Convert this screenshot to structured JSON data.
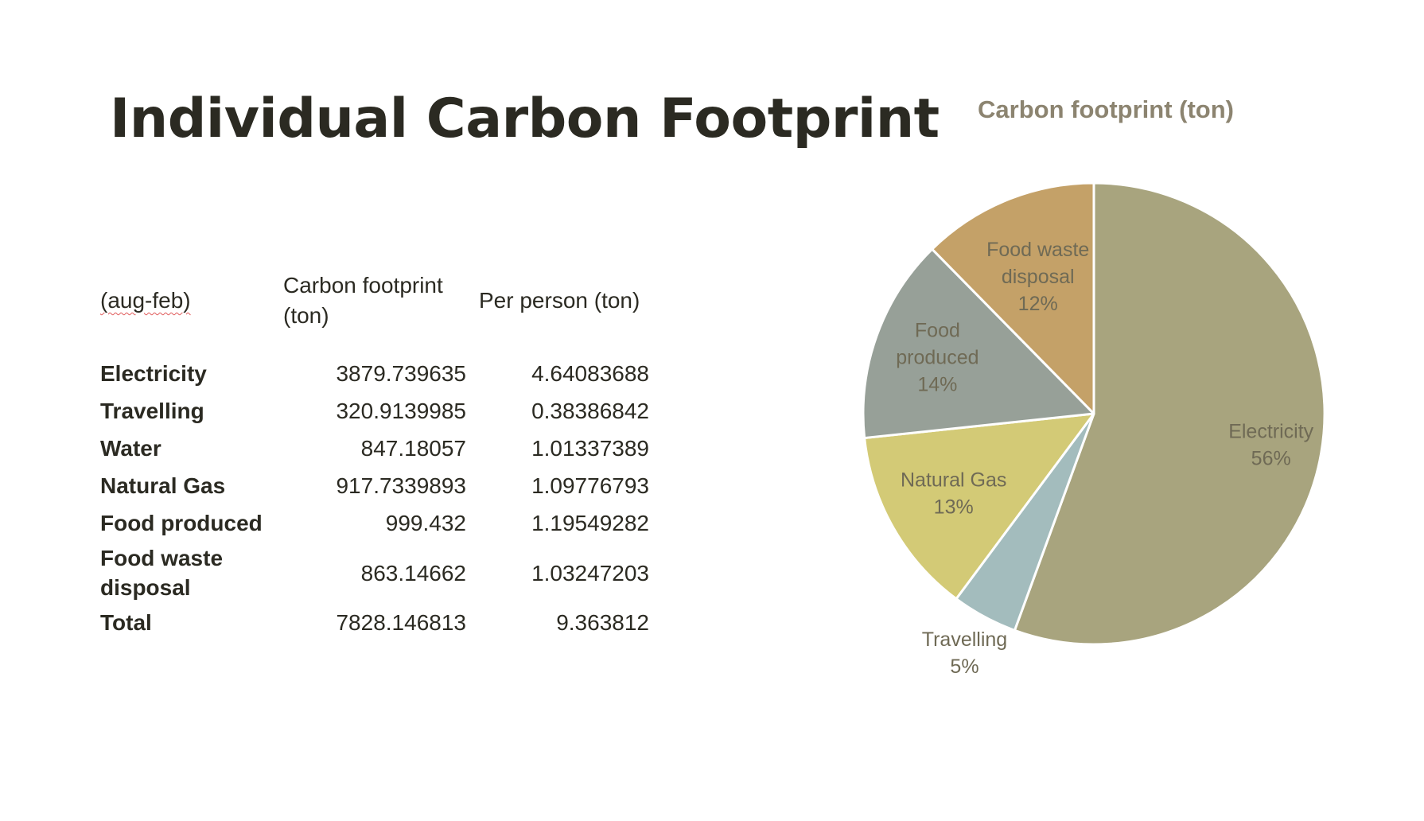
{
  "slide": {
    "title": "Individual Carbon Footprint"
  },
  "table": {
    "headers": [
      "(aug-feb)",
      "Carbon footprint (ton)",
      "Per person (ton)"
    ],
    "rows": [
      {
        "category": "Electricity",
        "footprint": "3879.739635",
        "per_person": "4.64083688"
      },
      {
        "category": "Travelling",
        "footprint": "320.9139985",
        "per_person": "0.38386842"
      },
      {
        "category": "Water",
        "footprint": "847.18057",
        "per_person": "1.01337389"
      },
      {
        "category": "Natural Gas",
        "footprint": "917.7339893",
        "per_person": "1.09776793"
      },
      {
        "category": "Food produced",
        "footprint": "999.432",
        "per_person": "1.19549282"
      },
      {
        "category": "Food waste disposal",
        "footprint": "863.14662",
        "per_person": "1.03247203"
      },
      {
        "category": "Total",
        "footprint": "7828.146813",
        "per_person": "9.363812"
      }
    ]
  },
  "chart_data": {
    "type": "pie",
    "title": "Carbon footprint (ton)",
    "slices": [
      {
        "label": "Electricity",
        "value": 3879.739635,
        "percent_label": "56%",
        "color": "#a8a47e"
      },
      {
        "label": "Travelling",
        "value": 320.9139985,
        "percent_label": "5%",
        "color": "#a3bcbd"
      },
      {
        "label": "Natural Gas",
        "value": 917.7339893,
        "percent_label": "13%",
        "color": "#d3ca76"
      },
      {
        "label": "Food produced",
        "value": 999.432,
        "percent_label": "14%",
        "color": "#97a098"
      },
      {
        "label": "Food waste disposal",
        "value": 863.14662,
        "percent_label": "12%",
        "color": "#c4a168"
      }
    ],
    "start": "12 o'clock",
    "direction": "clockwise",
    "labels": "category and percent",
    "legend": "none"
  }
}
